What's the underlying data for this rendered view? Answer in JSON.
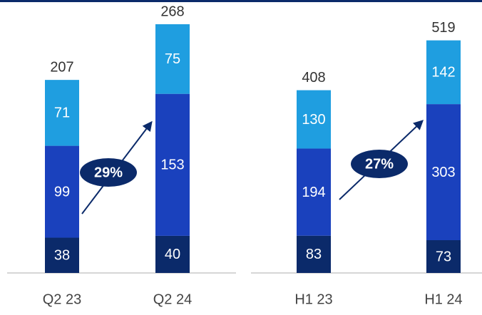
{
  "chart_data": [
    {
      "type": "bar",
      "stacked": true,
      "categories": [
        "Q2 23",
        "Q2 24"
      ],
      "series": [
        {
          "color": "#0b2a6a",
          "values": [
            38,
            40
          ]
        },
        {
          "color": "#1a41bd",
          "values": [
            99,
            153
          ]
        },
        {
          "color": "#1f9ee0",
          "values": [
            71,
            75
          ]
        }
      ],
      "totals": [
        207,
        268
      ],
      "annotation": "29%"
    },
    {
      "type": "bar",
      "stacked": true,
      "categories": [
        "H1 23",
        "H1 24"
      ],
      "series": [
        {
          "color": "#0b2a6a",
          "values": [
            83,
            73
          ]
        },
        {
          "color": "#1a41bd",
          "values": [
            194,
            303
          ]
        },
        {
          "color": "#1f9ee0",
          "values": [
            130,
            142
          ]
        }
      ],
      "totals": [
        408,
        519
      ],
      "annotation": "27%"
    }
  ]
}
